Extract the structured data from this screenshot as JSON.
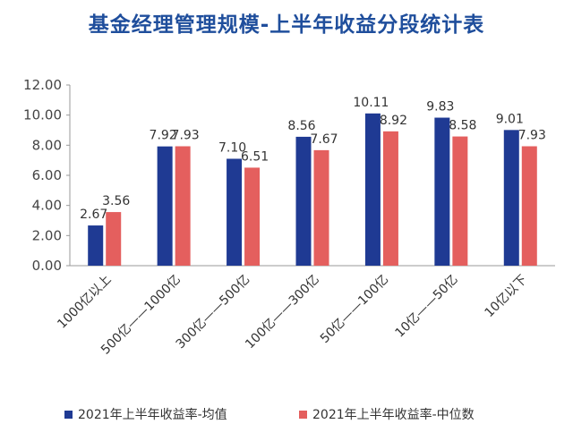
{
  "chart_data": {
    "type": "bar",
    "title": "基金经理管理规模-上半年收益分段统计表",
    "categories": [
      "1000亿以上",
      "500亿——1000亿",
      "300亿——500亿",
      "100亿——300亿",
      "50亿——100亿",
      "10亿——50亿",
      "10亿以下"
    ],
    "series": [
      {
        "name": "2021年上半年收益率-均值",
        "color": "#1f3a93",
        "values": [
          2.67,
          7.92,
          7.1,
          8.56,
          10.11,
          9.83,
          9.01
        ],
        "labels": [
          "2.67",
          "7.92",
          "7.10",
          "8.56",
          "10.11",
          "9.83",
          "9.01"
        ]
      },
      {
        "name": "2021年上半年收益率-中位数",
        "color": "#e45f5e",
        "values": [
          3.56,
          7.93,
          6.51,
          7.67,
          8.92,
          8.58,
          7.93
        ],
        "labels": [
          "3.56",
          "7.93",
          "6.51",
          "7.67",
          "8.92",
          "8.58",
          "7.93"
        ]
      }
    ],
    "ylim": [
      0,
      12
    ],
    "yticks": [
      "0.00",
      "2.00",
      "4.00",
      "6.00",
      "8.00",
      "10.00",
      "12.00"
    ],
    "grid": false,
    "legend_position": "bottom"
  }
}
